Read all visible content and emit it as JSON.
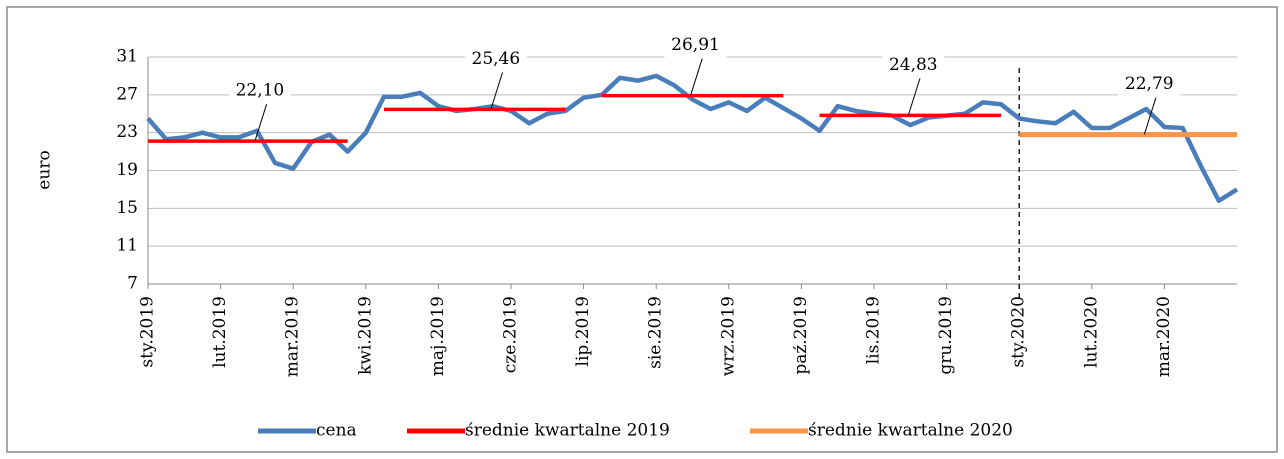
{
  "chart_data": {
    "type": "line",
    "ylabel": "euro",
    "categories": [
      "sty.2019",
      null,
      null,
      null,
      "lut.2019",
      null,
      null,
      null,
      "mar.2019",
      null,
      null,
      null,
      "kwi.2019",
      null,
      null,
      null,
      "maj.2019",
      null,
      null,
      null,
      "cze.2019",
      null,
      null,
      null,
      "lip.2019",
      null,
      null,
      null,
      "sie.2019",
      null,
      null,
      null,
      "wrz.2019",
      null,
      null,
      null,
      "paź.2019",
      null,
      null,
      null,
      "lis.2019",
      null,
      null,
      null,
      "gru.2019",
      null,
      null,
      null,
      "sty.2020",
      null,
      null,
      null,
      "lut.2020",
      null,
      null,
      null,
      "mar.2020",
      null,
      null,
      null,
      null
    ],
    "series": [
      {
        "name": "cena",
        "color": "#4a7ebb",
        "values": [
          24.5,
          22.3,
          22.5,
          23.0,
          22.5,
          22.5,
          23.2,
          19.8,
          19.2,
          22.0,
          22.8,
          21.0,
          23.0,
          26.8,
          26.8,
          27.2,
          25.8,
          25.3,
          25.5,
          25.8,
          25.3,
          24.0,
          25.0,
          25.3,
          26.7,
          27.0,
          28.8,
          28.5,
          29.0,
          28.0,
          26.5,
          25.5,
          26.2,
          25.3,
          26.7,
          25.6,
          24.5,
          23.2,
          25.8,
          25.3,
          25.0,
          24.8,
          23.8,
          24.6,
          24.8,
          25.0,
          26.2,
          26.0,
          24.5,
          24.2,
          24.0,
          25.2,
          23.5,
          23.5,
          24.5,
          25.5,
          23.6,
          23.5,
          19.5,
          15.8,
          17.0
        ]
      },
      {
        "name": "średnie kwartalne 2019",
        "color": "#ff0000",
        "values": [
          22.1,
          22.1,
          22.1,
          22.1,
          22.1,
          22.1,
          22.1,
          22.1,
          22.1,
          22.1,
          22.1,
          22.1,
          null,
          25.46,
          25.46,
          25.46,
          25.46,
          25.46,
          25.46,
          25.46,
          25.46,
          25.46,
          25.46,
          25.46,
          null,
          26.91,
          26.91,
          26.91,
          26.91,
          26.91,
          26.91,
          26.91,
          26.91,
          26.91,
          26.91,
          26.91,
          null,
          24.83,
          24.83,
          24.83,
          24.83,
          24.83,
          24.83,
          24.83,
          24.83,
          24.83,
          24.83,
          24.83,
          null,
          null,
          null,
          null,
          null,
          null,
          null,
          null,
          null,
          null,
          null,
          null,
          null
        ],
        "value_labels": [
          null,
          null,
          null,
          null,
          null,
          null,
          "22,10",
          null,
          null,
          null,
          null,
          null,
          null,
          null,
          null,
          null,
          null,
          null,
          null,
          "25,46",
          null,
          null,
          null,
          null,
          null,
          null,
          null,
          null,
          null,
          null,
          "26,91",
          null,
          null,
          null,
          null,
          null,
          null,
          null,
          null,
          null,
          null,
          null,
          "24,83",
          null,
          null,
          null,
          null,
          null,
          null,
          null,
          null,
          null,
          null,
          null,
          null,
          null,
          null,
          null,
          null,
          null,
          null
        ]
      },
      {
        "name": "średnie kwartalne 2020",
        "color": "#f79646",
        "values": [
          null,
          null,
          null,
          null,
          null,
          null,
          null,
          null,
          null,
          null,
          null,
          null,
          null,
          null,
          null,
          null,
          null,
          null,
          null,
          null,
          null,
          null,
          null,
          null,
          null,
          null,
          null,
          null,
          null,
          null,
          null,
          null,
          null,
          null,
          null,
          null,
          null,
          null,
          null,
          null,
          null,
          null,
          null,
          null,
          null,
          null,
          null,
          null,
          22.79,
          22.79,
          22.79,
          22.79,
          22.79,
          22.79,
          22.79,
          22.79,
          22.79,
          22.79,
          22.79,
          22.79,
          22.79
        ],
        "value_labels": [
          null,
          null,
          null,
          null,
          null,
          null,
          null,
          null,
          null,
          null,
          null,
          null,
          null,
          null,
          null,
          null,
          null,
          null,
          null,
          null,
          null,
          null,
          null,
          null,
          null,
          null,
          null,
          null,
          null,
          null,
          null,
          null,
          null,
          null,
          null,
          null,
          null,
          null,
          null,
          null,
          null,
          null,
          null,
          null,
          null,
          null,
          null,
          null,
          null,
          null,
          null,
          null,
          null,
          null,
          null,
          "22,79",
          null,
          null,
          null,
          null,
          null
        ]
      }
    ],
    "ylim": [
      7,
      31
    ],
    "yticks": [
      7,
      11,
      15,
      19,
      23,
      27,
      31
    ],
    "grid": true,
    "legend": "bottom"
  }
}
